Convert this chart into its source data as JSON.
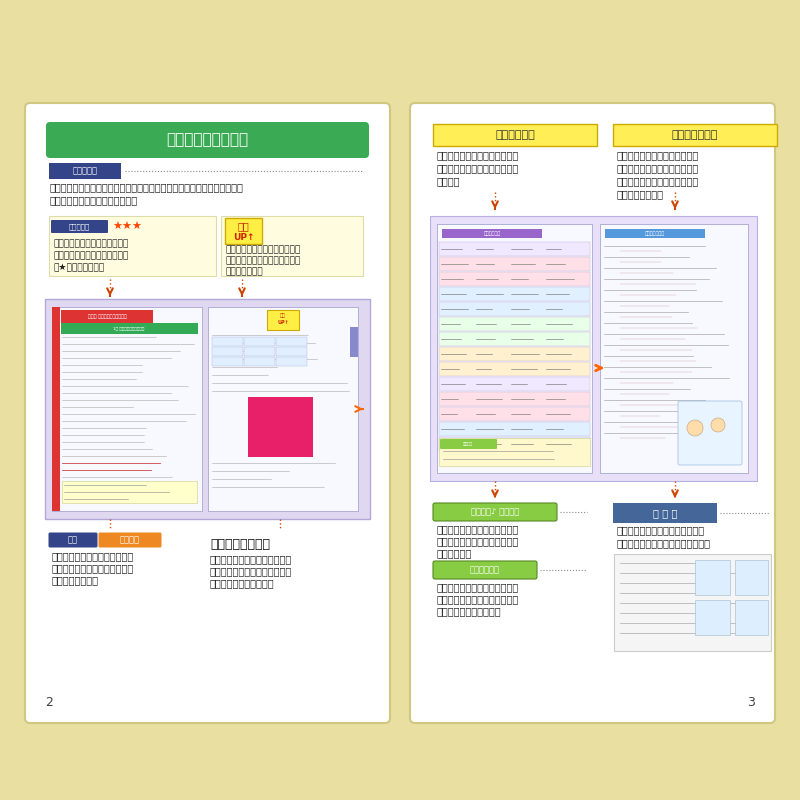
{
  "bg_color": "#e8dfa0",
  "page_bg": "#ffffff",
  "green_header": "#3aaa55",
  "page1_title": "本書の特色と使い方",
  "page1_section1_label": "実力強化編",
  "page1_section1_text1": "その節で学習する重要ポイントを、図解・表解・グラフなどを多用して、",
  "page1_section1_text2": "箇条書きで簡潔にまとめました。",
  "page1_badge1": "入試重要度",
  "page1_stars": "★★★",
  "page1_badge1_text1": "頻出出しの右に、大学入試での",
  "page1_badge1_text2": "重要度を３段階で示しました。",
  "page1_badge1_text3": "（★３つが最重要）",
  "page1_badge2_title1": "得点",
  "page1_badge2_title2": "UP↑",
  "page1_badge2_text1": "定期テストと大学入試によく出",
  "page1_badge2_text2": "るポイントとその対策を簡潔に",
  "page1_badge2_text3": "まとめました。",
  "page1_label_rei": "例題",
  "page1_label_rei2": "重要事項",
  "page1_rei_text1": "その節での典型的な問題をとり",
  "page1_rei_text2": "あげ、テスト対策に利用できる",
  "page1_rei_text3": "ようにしました。",
  "page1_label_filter": "消えるフィルター",
  "page1_filter_text1": "消えるフィルターを上に載せる",
  "page1_filter_text2": "と赤色の中の文字が消え、何度",
  "page1_filter_text3": "でもチェックできます。",
  "page2_section1": "表解のまとめ",
  "page2_section1_text1": "本文だけでは述べられなかった",
  "page2_section1_text2": "重要ポイントを表解式にまとめ",
  "page2_section1_text3": "ました。",
  "page2_section2": "チェックテスト",
  "page2_section2_text1": "一問一答式の確認テスト。定期",
  "page2_section2_text2": "テスト直前の知識の総整理と大",
  "page2_section2_text3": "学入試直前の確認に活用できる",
  "page2_section2_text4": "ようにしました。",
  "page2_label_yougo": "らくらく♪ 用語解説",
  "page2_yougo_text1": "本文に出てくる重要な事項・用",
  "page2_yougo_text2": "語を、例などをあげて詳しく解",
  "page2_yougo_text3": "説しました。",
  "page2_label_shiryo": "資 料 編",
  "page2_shiryo_text1": "巻末に「実力強化編」の内容を、",
  "page2_shiryo_text2": "図解化・表解化してまとめました。",
  "page2_label_goro": "らくらく暗記",
  "page2_goro_text1": "その節での最重要事項をゴロ合",
  "page2_goro_text2": "わせとし、マンガをつけて覚え",
  "page2_goro_text3": "やすいようにしました。",
  "page_num_left": "2",
  "page_num_right": "3"
}
